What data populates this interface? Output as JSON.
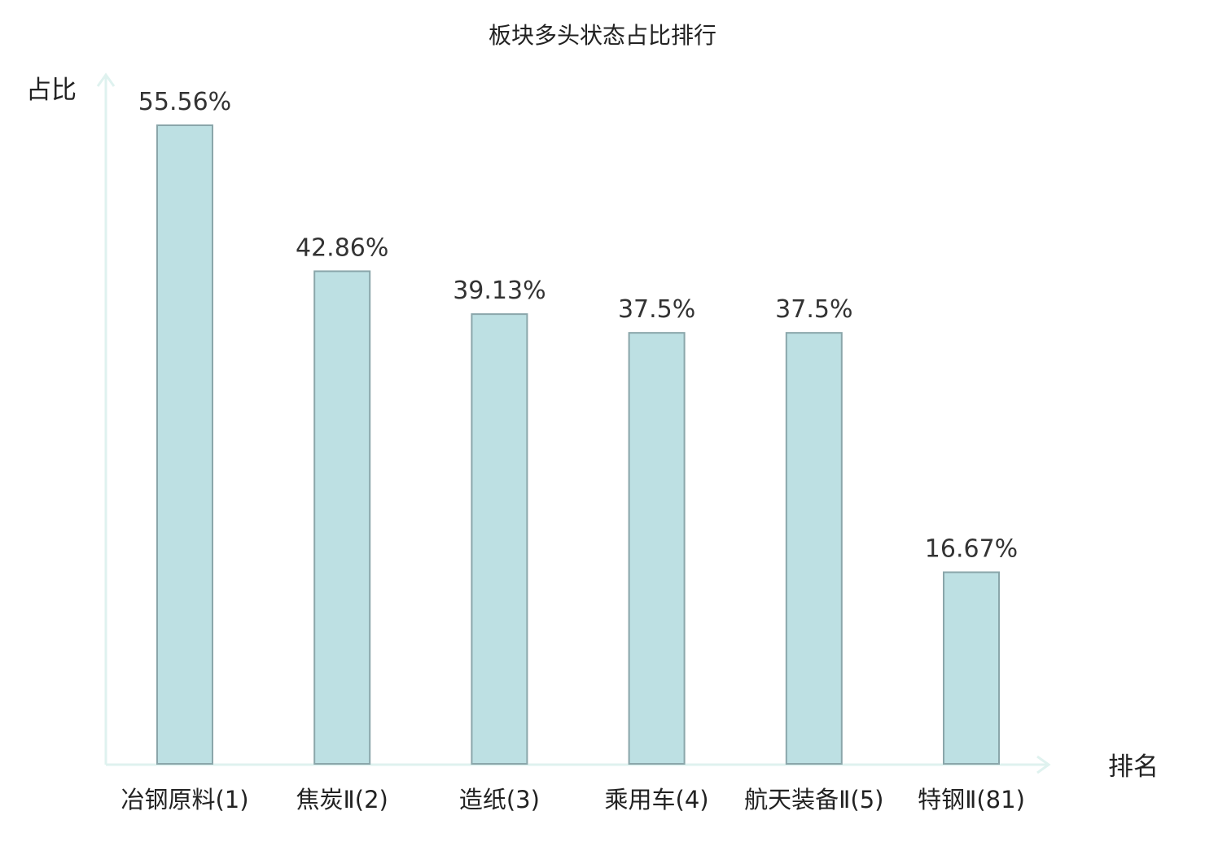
{
  "chart_data": {
    "type": "bar",
    "title": "板块多头状态占比排行",
    "ylabel": "占比",
    "xlabel": "排名",
    "categories": [
      "冶钢原料(1)",
      "焦炭Ⅱ(2)",
      "造纸(3)",
      "乘用车(4)",
      "航天装备Ⅱ(5)",
      "特钢Ⅱ(81)"
    ],
    "values": [
      55.56,
      42.86,
      39.13,
      37.5,
      37.5,
      16.67
    ],
    "value_labels": [
      "55.56%",
      "42.86%",
      "39.13%",
      "37.5%",
      "37.5%",
      "16.67%"
    ],
    "highlight_index": 5,
    "ylim": [
      0,
      55.56
    ],
    "grid": false,
    "legend": "none"
  },
  "colors": {
    "bar_fill": "#bde0e3",
    "bar_stroke": "#8aa6aa",
    "axis": "#dff2ef",
    "text": "#222222",
    "highlight": "#e01e1e"
  }
}
